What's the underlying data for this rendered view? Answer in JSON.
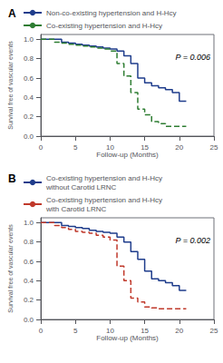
{
  "chart_data": [
    {
      "type": "line",
      "title": "A",
      "xlabel": "Follow-up (Months)",
      "ylabel": "Survival free of vascular events",
      "annotations": [
        "P = 0.006"
      ],
      "xlim": [
        0,
        25
      ],
      "ylim": [
        0.0,
        1.05
      ],
      "xticks": [
        0,
        5,
        10,
        15,
        20,
        25
      ],
      "yticks": [
        {
          "value": 0.0,
          "label": "0.0"
        },
        0.2,
        0.4,
        0.6,
        0.8,
        {
          "value": 1.0,
          "label": "1.0"
        }
      ],
      "grid": false,
      "series": [
        {
          "name": "Non-co-existing hypertension and H-Hcy",
          "color": "#1f3d8c",
          "line_style": "solid",
          "x": [
            0,
            2,
            3,
            4,
            5,
            6,
            7,
            8,
            9,
            10,
            11,
            12,
            13,
            14,
            15,
            16,
            17,
            18,
            19,
            20,
            21
          ],
          "values": [
            1.0,
            1.0,
            0.97,
            0.96,
            0.95,
            0.94,
            0.93,
            0.92,
            0.91,
            0.9,
            0.88,
            0.83,
            0.75,
            0.6,
            0.55,
            0.52,
            0.5,
            0.48,
            0.45,
            0.36,
            0.36
          ]
        },
        {
          "name": "Co-existing hypertension and H-Hcy",
          "color": "#2e7d32",
          "line_style": "dashed",
          "x": [
            0,
            2,
            3,
            4,
            5,
            6,
            7,
            8,
            9,
            10,
            11,
            12,
            13,
            14,
            15,
            16,
            17,
            18,
            19,
            20,
            21
          ],
          "values": [
            1.0,
            0.97,
            0.96,
            0.95,
            0.94,
            0.93,
            0.92,
            0.91,
            0.9,
            0.88,
            0.75,
            0.62,
            0.45,
            0.28,
            0.22,
            0.15,
            0.13,
            0.1,
            0.1,
            0.1,
            0.1
          ]
        }
      ]
    },
    {
      "type": "line",
      "title": "B",
      "xlabel": "Follow-up (Months)",
      "ylabel": "Survival free of vascular events",
      "annotations": [
        "P = 0.002"
      ],
      "xlim": [
        0,
        25
      ],
      "ylim": [
        0.0,
        1.05
      ],
      "xticks": [
        0,
        5,
        10,
        15,
        20,
        25
      ],
      "yticks": [
        {
          "value": 0.0,
          "label": "0.0"
        },
        0.2,
        0.4,
        0.6,
        0.8,
        {
          "value": 1.0,
          "label": "1.0"
        }
      ],
      "grid": false,
      "series": [
        {
          "name": "Co-existing hypertension and H-Hcy\nwithout Carotid LRNC",
          "color": "#1f3d8c",
          "line_style": "solid",
          "x": [
            0,
            2,
            3,
            4,
            5,
            6,
            7,
            8,
            9,
            10,
            11,
            12,
            13,
            14,
            15,
            16,
            17,
            18,
            19,
            20,
            21
          ],
          "values": [
            1.0,
            1.0,
            0.97,
            0.96,
            0.95,
            0.94,
            0.92,
            0.91,
            0.9,
            0.89,
            0.85,
            0.8,
            0.7,
            0.62,
            0.5,
            0.42,
            0.4,
            0.38,
            0.35,
            0.3,
            0.3
          ]
        },
        {
          "name": "Co-existing hypertension and H-Hcy\nwith Carotid LRNC",
          "color": "#c0392b",
          "line_style": "dashed",
          "x": [
            0,
            2,
            3,
            4,
            5,
            6,
            7,
            8,
            9,
            10,
            11,
            12,
            13,
            14,
            15,
            16,
            17,
            18,
            19,
            20,
            21
          ],
          "values": [
            1.0,
            0.97,
            0.95,
            0.93,
            0.91,
            0.9,
            0.89,
            0.87,
            0.85,
            0.82,
            0.55,
            0.4,
            0.22,
            0.18,
            0.13,
            0.12,
            0.11,
            0.11,
            0.11,
            0.11,
            0.11
          ]
        }
      ]
    }
  ]
}
